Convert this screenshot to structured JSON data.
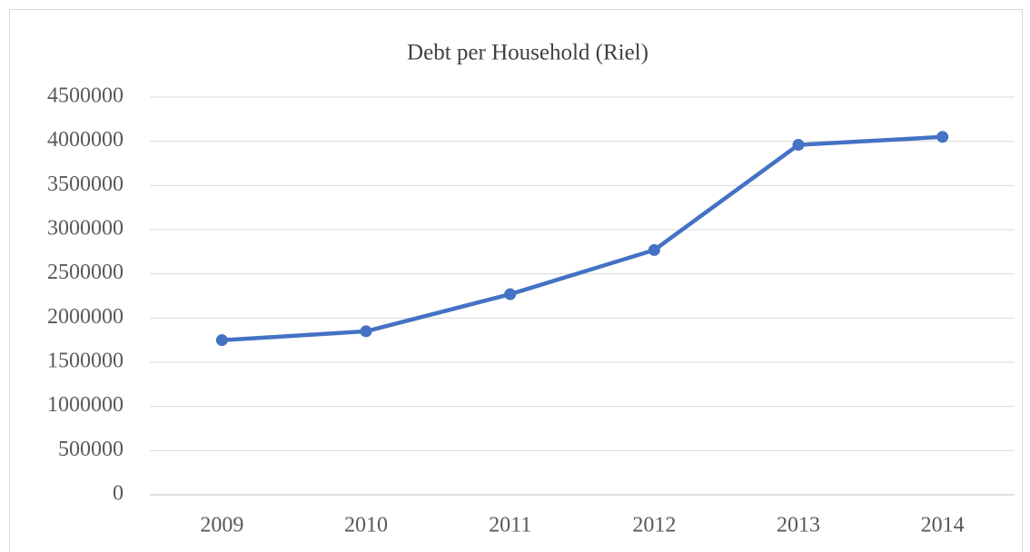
{
  "chart_data": {
    "type": "line",
    "title": "Debt per Household (Riel)",
    "categories": [
      "2009",
      "2010",
      "2011",
      "2012",
      "2013",
      "2014"
    ],
    "series": [
      {
        "name": "Debt per Household",
        "color": "#4472c4",
        "values": [
          1750000,
          1850000,
          2270000,
          2770000,
          3960000,
          4050000
        ]
      }
    ],
    "ylim": [
      0,
      4500000
    ],
    "yticks": [
      0,
      500000,
      1000000,
      1500000,
      2000000,
      2500000,
      3000000,
      3500000,
      4000000,
      4500000
    ],
    "grid": true
  }
}
